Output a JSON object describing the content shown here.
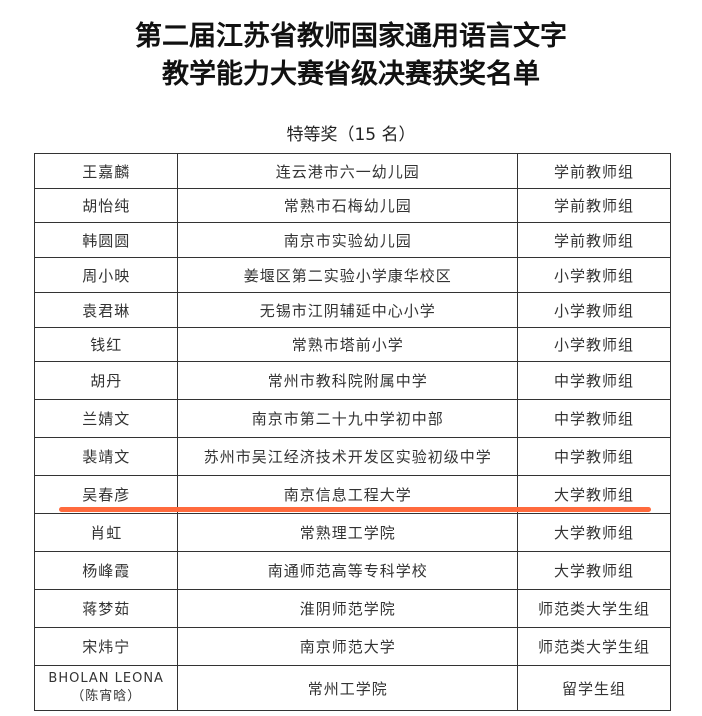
{
  "title_line1": "第二届江苏省教师国家通用语言文字",
  "title_line2": "教学能力大赛省级决赛获奖名单",
  "section_title": "特等奖（15 名）",
  "highlight_color": "#ff6a3d",
  "rows": [
    {
      "name": "王嘉麟",
      "unit": "连云港市六一幼儿园",
      "group": "学前教师组"
    },
    {
      "name": "胡怡纯",
      "unit": "常熟市石梅幼儿园",
      "group": "学前教师组"
    },
    {
      "name": "韩圆圆",
      "unit": "南京市实验幼儿园",
      "group": "学前教师组"
    },
    {
      "name": "周小映",
      "unit": "姜堰区第二实验小学康华校区",
      "group": "小学教师组"
    },
    {
      "name": "袁君琳",
      "unit": "无锡市江阴辅延中心小学",
      "group": "小学教师组"
    },
    {
      "name": "钱红",
      "unit": "常熟市塔前小学",
      "group": "小学教师组"
    },
    {
      "name": "胡丹",
      "unit": "常州市教科院附属中学",
      "group": "中学教师组"
    },
    {
      "name": "兰婧文",
      "unit": "南京市第二十九中学初中部",
      "group": "中学教师组"
    },
    {
      "name": "裴靖文",
      "unit": "苏州市吴江经济技术开发区实验初级中学",
      "group": "中学教师组"
    },
    {
      "name": "吴春彦",
      "unit": "南京信息工程大学",
      "group": "大学教师组"
    },
    {
      "name": "肖虹",
      "unit": "常熟理工学院",
      "group": "大学教师组"
    },
    {
      "name": "杨峰霞",
      "unit": "南通师范高等专科学校",
      "group": "大学教师组"
    },
    {
      "name": "蒋梦茹",
      "unit": "淮阴师范学院",
      "group": "师范类大学生组"
    },
    {
      "name": "宋炜宁",
      "unit": "南京师范大学",
      "group": "师范类大学生组"
    },
    {
      "name": "BHOLAN LEONA",
      "name_cn": "（陈宵晗）",
      "unit": "常州工学院",
      "group": "留学生组"
    }
  ]
}
